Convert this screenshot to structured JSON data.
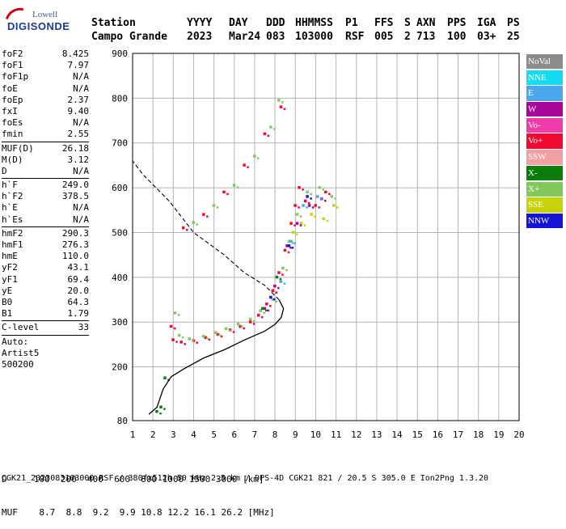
{
  "logo": {
    "line1": "Lowell",
    "line2": "DIGISONDE"
  },
  "header": {
    "row1": [
      "Station",
      "YYYY",
      "DAY",
      "DDD",
      "HHMMSS",
      "P1",
      "FFS",
      "S",
      "AXN",
      "PPS",
      "IGA",
      "PS"
    ],
    "row2": [
      "Campo Grande",
      "2023",
      "Mar24",
      "083",
      "103000",
      "RSF",
      "005",
      "2",
      "713",
      "100",
      "03+",
      "25"
    ]
  },
  "params": {
    "g1": [
      {
        "name": "foF2",
        "value": "8.425"
      },
      {
        "name": "foF1",
        "value": "7.97"
      },
      {
        "name": "foF1p",
        "value": "N/A"
      },
      {
        "name": "foE",
        "value": "N/A"
      },
      {
        "name": "foEp",
        "value": "2.37"
      },
      {
        "name": "fxI",
        "value": "9.40"
      },
      {
        "name": "foEs",
        "value": "N/A"
      },
      {
        "name": "fmin",
        "value": "2.55"
      }
    ],
    "g2": [
      {
        "name": "MUF(D)",
        "value": "26.18"
      },
      {
        "name": "M(D)",
        "value": "3.12"
      },
      {
        "name": "D",
        "value": "N/A"
      }
    ],
    "g3": [
      {
        "name": "h`F",
        "value": "249.0"
      },
      {
        "name": "h`F2",
        "value": "378.5"
      },
      {
        "name": "h`E",
        "value": "N/A"
      },
      {
        "name": "h`Es",
        "value": "N/A"
      }
    ],
    "g4": [
      {
        "name": "hmF2",
        "value": "290.3"
      },
      {
        "name": "hmF1",
        "value": "276.3"
      },
      {
        "name": "hmE",
        "value": "110.0"
      },
      {
        "name": "yF2",
        "value": "43.1"
      },
      {
        "name": "yF1",
        "value": "69.4"
      },
      {
        "name": "yE",
        "value": "20.0"
      },
      {
        "name": "B0",
        "value": "64.3"
      },
      {
        "name": "B1",
        "value": "1.79"
      }
    ],
    "g5": [
      {
        "name": "C-level",
        "value": "33"
      }
    ],
    "autoscaling": [
      "Auto:",
      "Artist5",
      "500200"
    ]
  },
  "legend": [
    {
      "label": "NoVal",
      "color": "#8c8c8c"
    },
    {
      "label": "NNE",
      "color": "#14dcf0"
    },
    {
      "label": "E",
      "color": "#4ba6f0"
    },
    {
      "label": "W",
      "color": "#a8089a"
    },
    {
      "label": "Vo-",
      "color": "#f03caa"
    },
    {
      "label": "Vo+",
      "color": "#f00a32"
    },
    {
      "label": "SSW",
      "color": "#f0a0a0"
    },
    {
      "label": "X-",
      "color": "#0a7d0a"
    },
    {
      "label": "X+",
      "color": "#82c85a"
    },
    {
      "label": "SSE",
      "color": "#c8d20a"
    },
    {
      "label": "NNW",
      "color": "#1414d2"
    }
  ],
  "bottom": {
    "d_row": "D     100  200  400  600  800 1000 1500 3000 [km]",
    "muf_row": "MUF    8.7  8.8  9.2  9.9 10.8 12.2 16.1 26.2 [MHz]",
    "footer": "CGK21_2023083103000.RSF / 380fx512h 50 kHz 2.5 km / DPS-4D CGK21 821 / 20.5 S 305.0 E Ion2Png 1.3.20"
  },
  "chart_data": {
    "type": "scatter",
    "xlim": [
      1,
      20
    ],
    "ylim": [
      80,
      900
    ],
    "xticks": [
      1,
      2,
      3,
      4,
      5,
      6,
      7,
      8,
      9,
      10,
      11,
      12,
      13,
      14,
      15,
      16,
      17,
      18,
      19,
      20
    ],
    "yticks": [
      80,
      200,
      300,
      400,
      500,
      600,
      700,
      800,
      900
    ],
    "grid": true,
    "legend_position": "right",
    "series": [
      {
        "name": "Vo+",
        "color": "#f00a32",
        "points": [
          [
            2.9,
            290
          ],
          [
            3.0,
            260
          ],
          [
            3.4,
            255
          ],
          [
            4.0,
            258
          ],
          [
            4.6,
            265
          ],
          [
            5.2,
            272
          ],
          [
            5.8,
            282
          ],
          [
            6.3,
            290
          ],
          [
            6.8,
            300
          ],
          [
            7.2,
            315
          ],
          [
            7.6,
            340
          ],
          [
            7.9,
            370
          ],
          [
            8.2,
            410
          ],
          [
            8.5,
            460
          ],
          [
            8.8,
            520
          ],
          [
            9.0,
            560
          ],
          [
            9.2,
            600
          ],
          [
            9.5,
            570
          ],
          [
            10.0,
            560
          ],
          [
            10.5,
            590
          ],
          [
            3.5,
            510
          ],
          [
            4.5,
            540
          ],
          [
            5.5,
            590
          ],
          [
            6.5,
            650
          ],
          [
            7.5,
            720
          ],
          [
            8.3,
            780
          ]
        ]
      },
      {
        "name": "X+",
        "color": "#82c85a",
        "points": [
          [
            3.1,
            320
          ],
          [
            3.3,
            270
          ],
          [
            3.8,
            262
          ],
          [
            4.5,
            268
          ],
          [
            5.1,
            276
          ],
          [
            5.6,
            285
          ],
          [
            6.2,
            295
          ],
          [
            6.8,
            306
          ],
          [
            7.3,
            325
          ],
          [
            7.9,
            350
          ],
          [
            8.4,
            420
          ],
          [
            8.7,
            480
          ],
          [
            9.1,
            540
          ],
          [
            9.6,
            590
          ],
          [
            10.2,
            600
          ],
          [
            10.8,
            580
          ],
          [
            4.0,
            522
          ],
          [
            5.0,
            560
          ],
          [
            6.0,
            605
          ],
          [
            7.0,
            670
          ],
          [
            7.8,
            735
          ],
          [
            8.2,
            795
          ]
        ]
      },
      {
        "name": "SSE",
        "color": "#c8d20a",
        "points": [
          [
            9.3,
            520
          ],
          [
            9.8,
            540
          ],
          [
            10.4,
            530
          ],
          [
            10.9,
            560
          ],
          [
            8.9,
            500
          ]
        ]
      },
      {
        "name": "W",
        "color": "#a8089a",
        "points": [
          [
            7.5,
            330
          ],
          [
            8.0,
            380
          ],
          [
            8.6,
            470
          ],
          [
            9.1,
            520
          ],
          [
            9.7,
            560
          ],
          [
            10.3,
            575
          ]
        ]
      },
      {
        "name": "E",
        "color": "#4ba6f0",
        "points": [
          [
            8.3,
            390
          ],
          [
            8.8,
            480
          ],
          [
            9.4,
            560
          ],
          [
            10.1,
            580
          ]
        ]
      },
      {
        "name": "NNW",
        "color": "#1414d2",
        "points": [
          [
            7.8,
            355
          ],
          [
            8.7,
            470
          ],
          [
            9.6,
            580
          ]
        ]
      },
      {
        "name": "X-",
        "color": "#0a7d0a",
        "points": [
          [
            2.2,
            100
          ],
          [
            2.4,
            110
          ],
          [
            2.6,
            175
          ],
          [
            7.4,
            330
          ],
          [
            8.1,
            400
          ]
        ]
      }
    ],
    "profile_curve": [
      [
        1.8,
        94
      ],
      [
        2.2,
        110
      ],
      [
        2.5,
        150
      ],
      [
        2.9,
        178
      ],
      [
        3.5,
        195
      ],
      [
        4.5,
        220
      ],
      [
        5.5,
        238
      ],
      [
        6.5,
        260
      ],
      [
        7.5,
        280
      ],
      [
        8.0,
        295
      ],
      [
        8.3,
        310
      ],
      [
        8.42,
        330
      ],
      [
        8.2,
        350
      ],
      [
        7.5,
        382
      ],
      [
        6.5,
        410
      ],
      [
        5.5,
        450
      ],
      [
        4.0,
        500
      ],
      [
        2.8,
        570
      ],
      [
        1.5,
        630
      ],
      [
        1.0,
        660
      ]
    ]
  }
}
